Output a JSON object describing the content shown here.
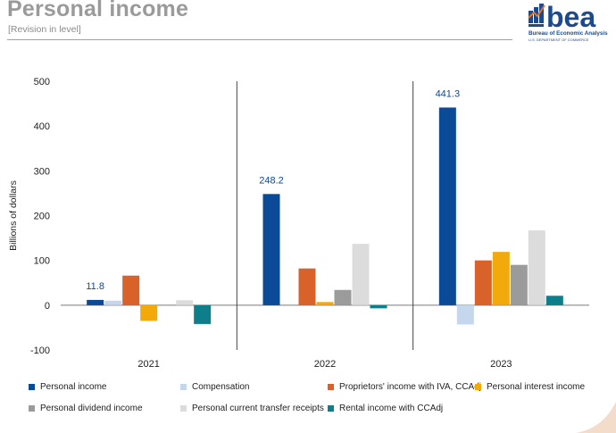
{
  "header": {
    "title": "Personal income",
    "subtitle": "[Revision in level]"
  },
  "logo": {
    "wordmark": "bea",
    "name": "Bureau of Economic Analysis",
    "department": "U.S. DEPARTMENT OF COMMERCE",
    "colors": {
      "primary": "#1c4a8c",
      "accent": "#e8731a"
    }
  },
  "chart_data": {
    "type": "bar",
    "title": "Personal income",
    "subtitle": "[Revision in level]",
    "xlabel": "",
    "ylabel": "Billions of dollars",
    "ylim": [
      -100,
      500
    ],
    "yticks": [
      -100,
      0,
      100,
      200,
      300,
      400,
      500
    ],
    "ytick_labels": [
      "-100",
      "0",
      "100",
      "200",
      "300",
      "400",
      "500"
    ],
    "categories": [
      "2021",
      "2022",
      "2023"
    ],
    "series": [
      {
        "name": "Personal income",
        "color": "#0b4a97",
        "values": [
          11.8,
          248.2,
          441.3
        ],
        "labels": [
          "11.8",
          "248.2",
          "441.3"
        ]
      },
      {
        "name": "Compensation",
        "color": "#c5d7ec",
        "values": [
          10,
          0,
          -43
        ]
      },
      {
        "name": "Proprietors' income with IVA, CCAdj",
        "color": "#d8622a",
        "values": [
          66,
          82,
          100
        ]
      },
      {
        "name": "Personal interest income",
        "color": "#f2a90c",
        "values": [
          -35,
          7,
          119
        ]
      },
      {
        "name": "Personal dividend income",
        "color": "#9b9b9b",
        "values": [
          0,
          34,
          90
        ]
      },
      {
        "name": "Personal current transfer receipts",
        "color": "#dcdcdc",
        "values": [
          11,
          137,
          167
        ]
      },
      {
        "name": "Rental income with CCAdj",
        "color": "#0e7f8a",
        "values": [
          -42,
          -7,
          21
        ]
      }
    ],
    "grid": false,
    "legend_position": "bottom"
  }
}
